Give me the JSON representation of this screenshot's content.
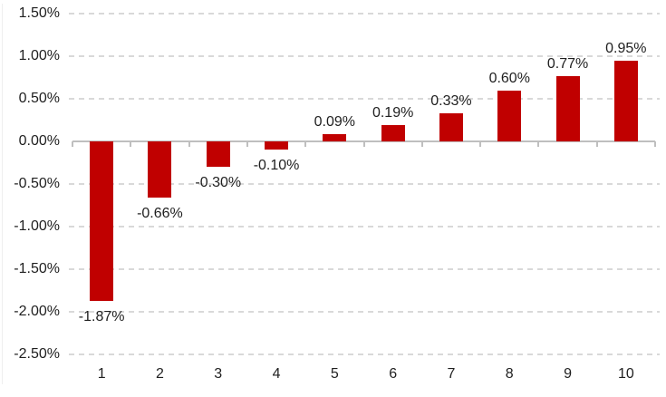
{
  "chart_data": {
    "type": "bar",
    "title": "",
    "categories": [
      "1",
      "2",
      "3",
      "4",
      "5",
      "6",
      "7",
      "8",
      "9",
      "10"
    ],
    "values": [
      -1.87,
      -0.66,
      -0.3,
      -0.1,
      0.09,
      0.19,
      0.33,
      0.6,
      0.77,
      0.95
    ],
    "data_labels": [
      "-1.87%",
      "-0.66%",
      "-0.30%",
      "-0.10%",
      "0.09%",
      "0.19%",
      "0.33%",
      "0.60%",
      "0.77%",
      "0.95%"
    ],
    "data_label_position": "outside-end",
    "xlabel": "",
    "ylabel": "",
    "ylim": [
      -2.5,
      1.5
    ],
    "y_axis": {
      "tick_labels": [
        "1.50%",
        "1.00%",
        "0.50%",
        "0.00%",
        "-0.50%",
        "-1.00%",
        "-1.50%",
        "-2.00%",
        "-2.50%"
      ],
      "tick_values": [
        1.5,
        1.0,
        0.5,
        0.0,
        -0.5,
        -1.0,
        -1.5,
        -2.0,
        -2.5
      ],
      "number_format": "0.00%"
    },
    "grid": "horizontal-dashed",
    "legend": "none",
    "colors": {
      "bar": "#C00000",
      "gridline": "#D9D9D9",
      "axis_line": "#BFBFBF",
      "text": "#1F1F1F",
      "background": "#FFFFFF"
    }
  }
}
